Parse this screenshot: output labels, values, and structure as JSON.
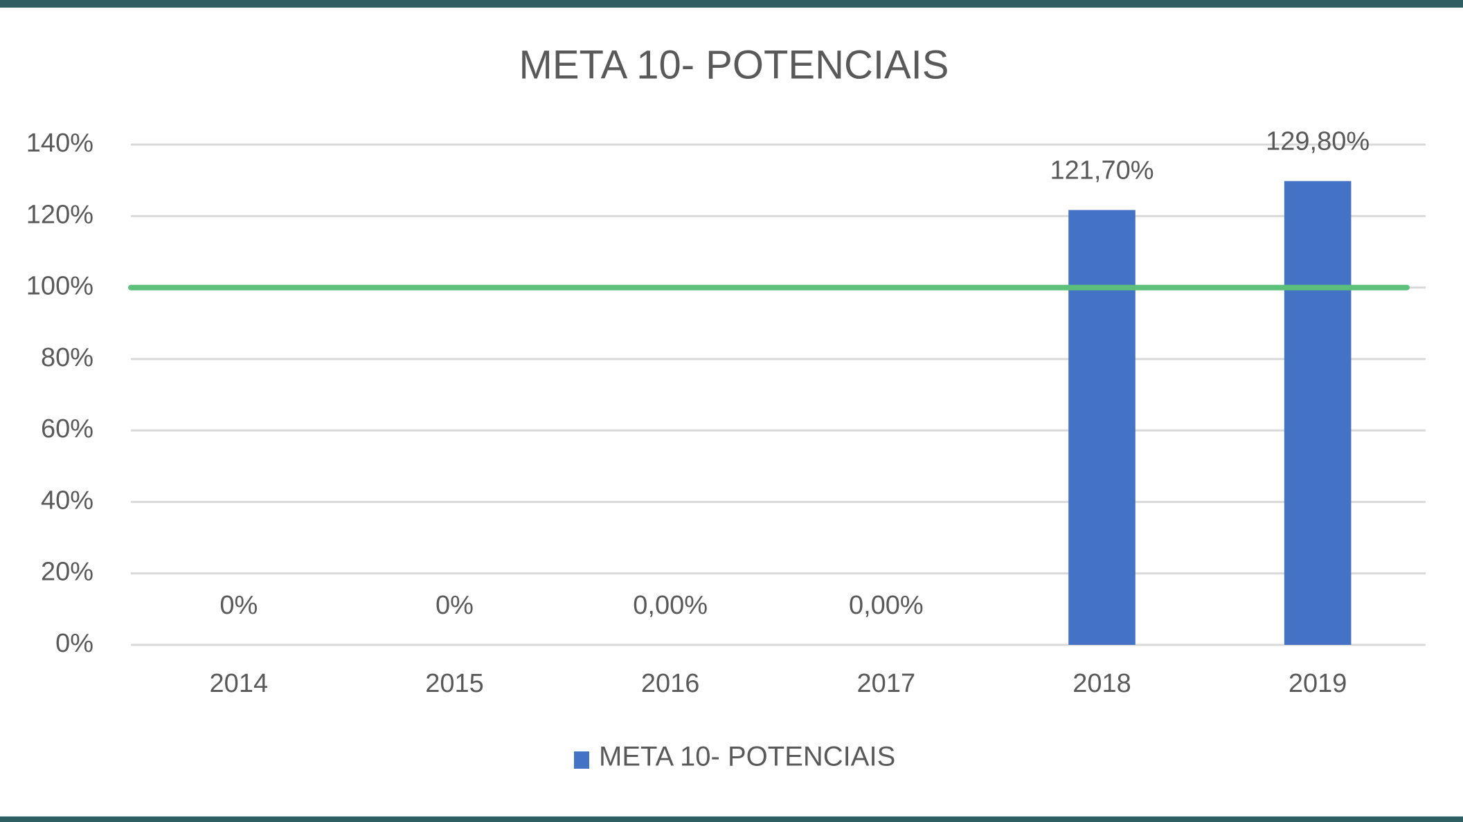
{
  "chart_data": {
    "type": "bar",
    "title": "META 10- POTENCIAIS",
    "categories": [
      "2014",
      "2015",
      "2016",
      "2017",
      "2018",
      "2019"
    ],
    "series": [
      {
        "name": "META 10- POTENCIAIS",
        "color": "#4472c4",
        "values": [
          0,
          0,
          0,
          0,
          121.7,
          129.8
        ],
        "value_labels": [
          "0%",
          "0%",
          "0,00%",
          "0,00%",
          "121,70%",
          "129,80%"
        ]
      }
    ],
    "ylim": [
      0,
      140
    ],
    "yticks": [
      {
        "value": 0,
        "label": "0%"
      },
      {
        "value": 20,
        "label": "20%"
      },
      {
        "value": 40,
        "label": "40%"
      },
      {
        "value": 60,
        "label": "60%"
      },
      {
        "value": 80,
        "label": "80%"
      },
      {
        "value": 100,
        "label": "100%"
      },
      {
        "value": 120,
        "label": "120%"
      },
      {
        "value": 140,
        "label": "140%"
      }
    ],
    "grid": true,
    "reference_line": {
      "value": 100,
      "color": "#5cbf7a"
    },
    "legend": "bottom"
  }
}
